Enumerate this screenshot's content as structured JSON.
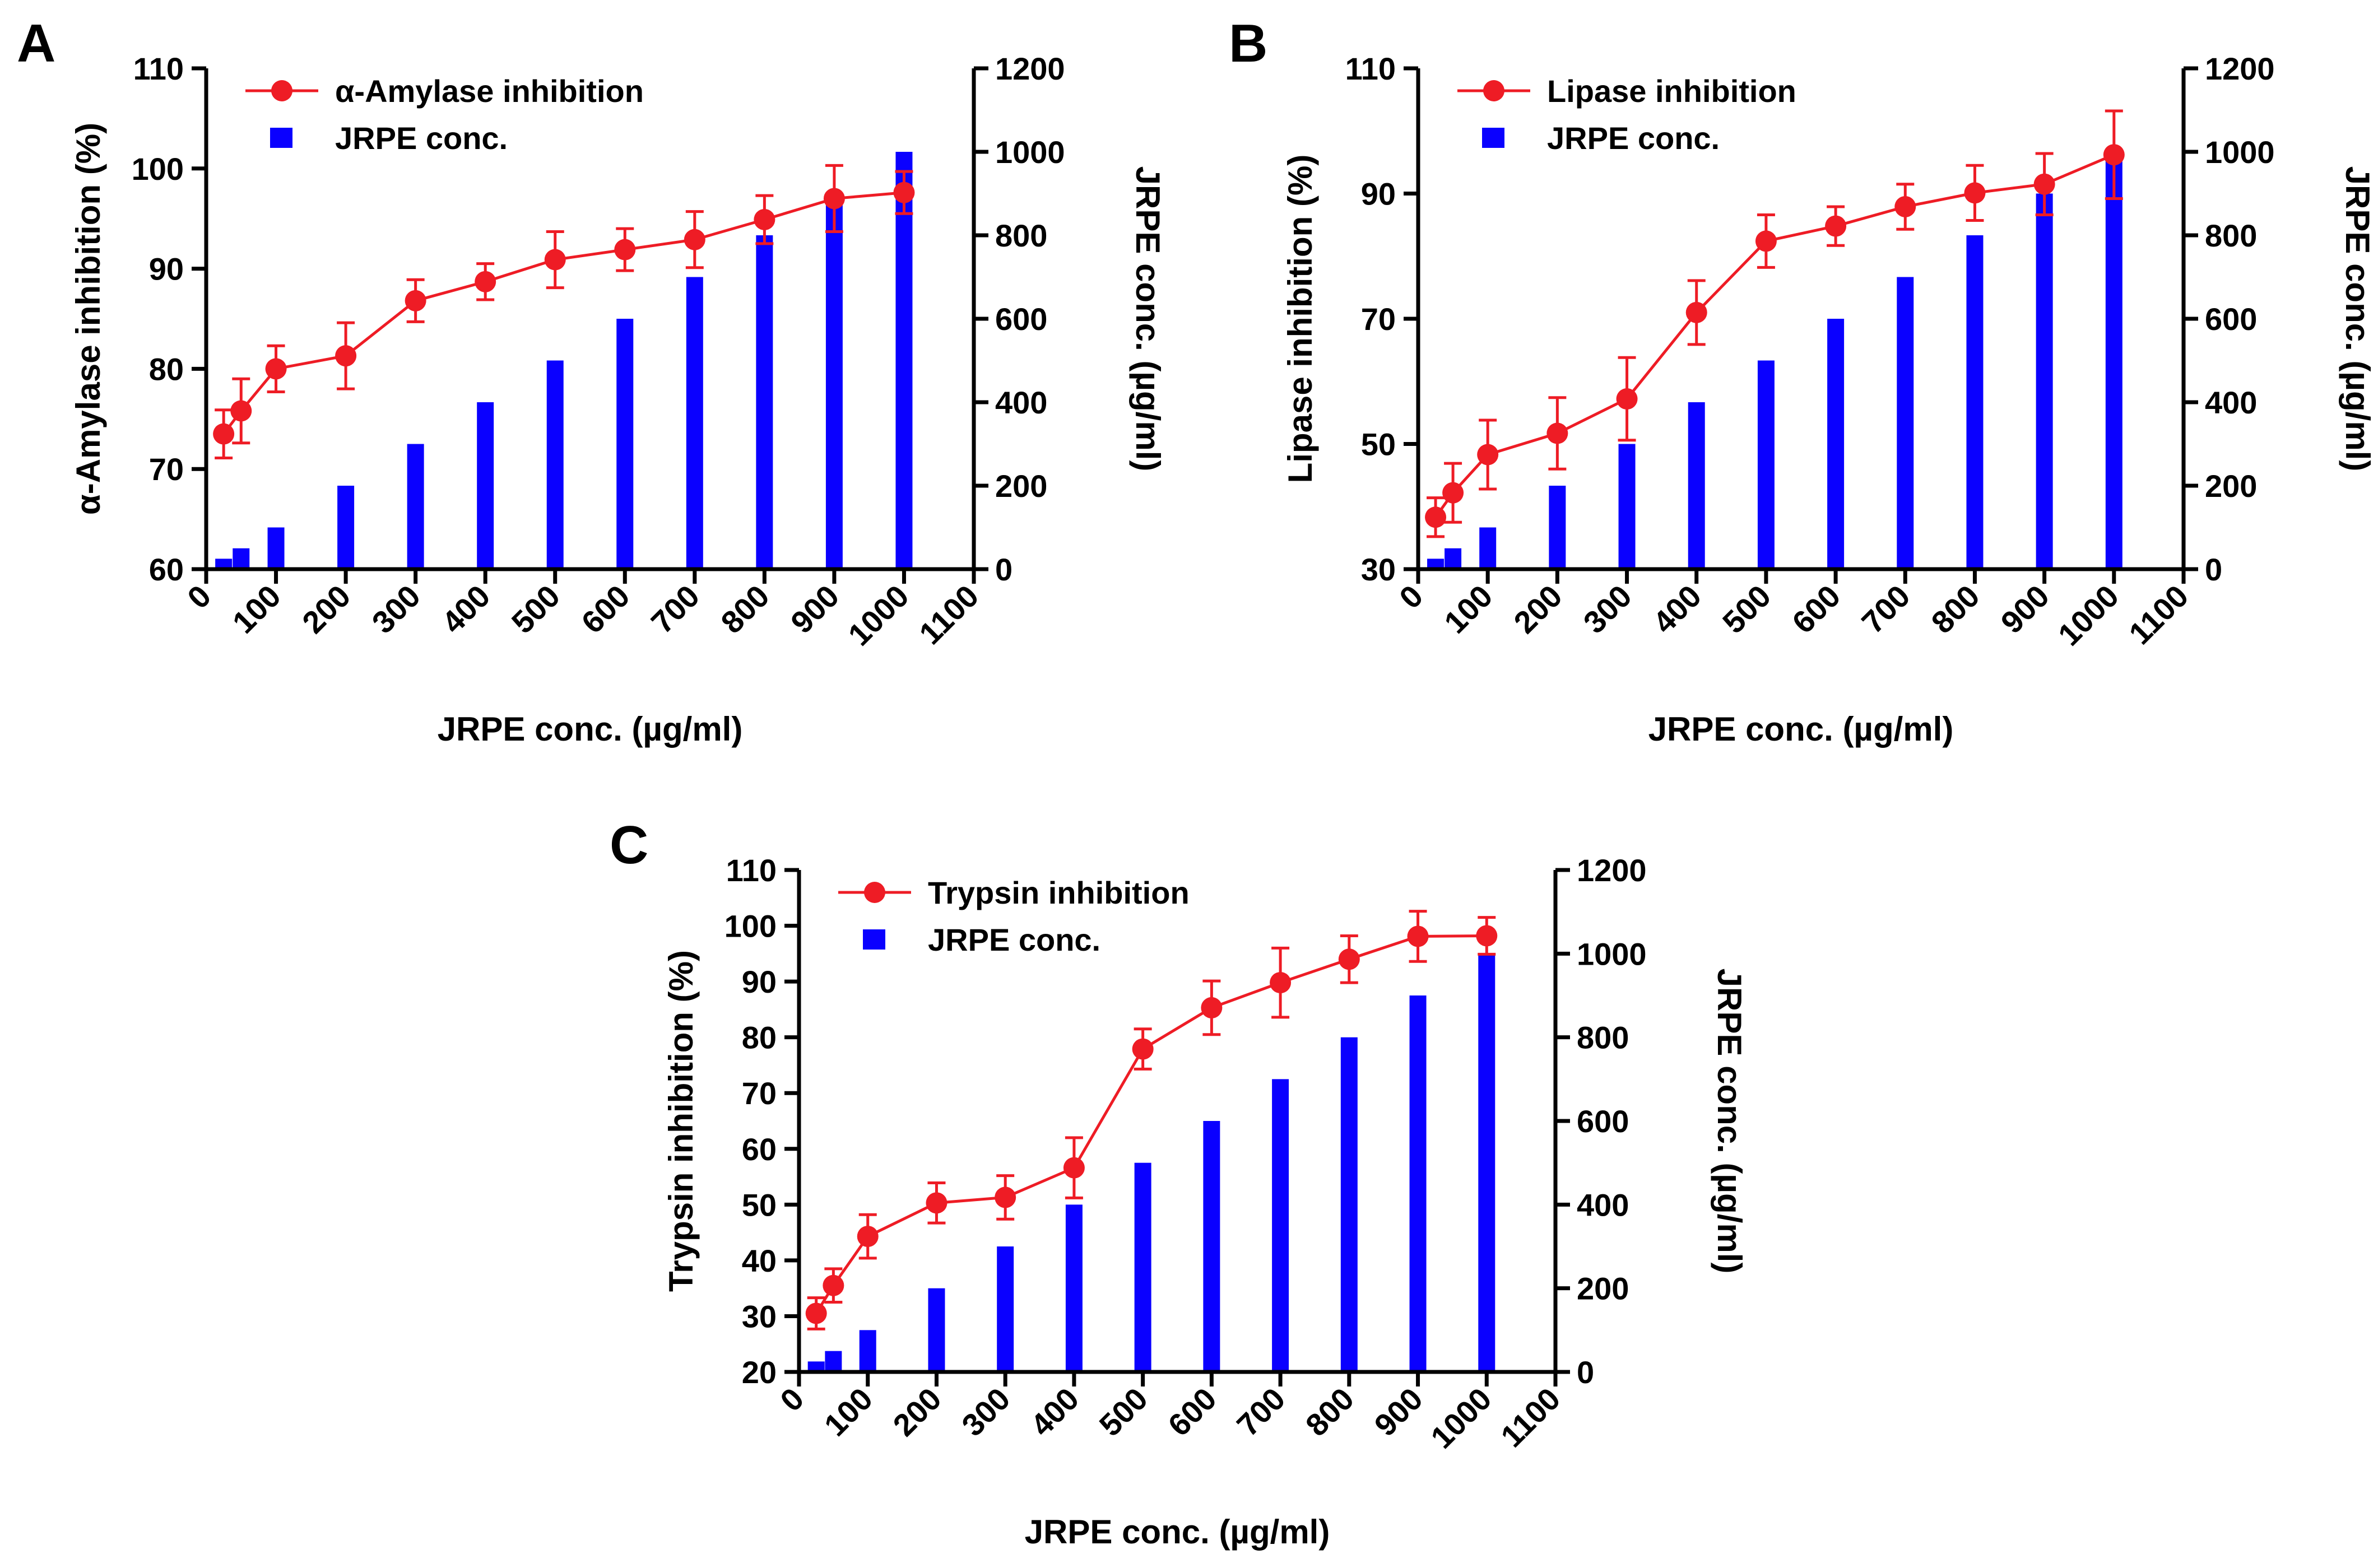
{
  "chart_data": [
    {
      "panel_label": "A",
      "type": "bar+line",
      "xlabel": "JRPE conc. (µg/ml)",
      "ylabel_left": "α-Amylase inhibition (%)",
      "ylabel_right": "JRPE conc. (µg/ml)",
      "xlim": [
        0,
        1100
      ],
      "ylim_left": [
        60,
        110
      ],
      "ylim_right": [
        0,
        1200
      ],
      "x_ticks": [
        0,
        100,
        200,
        300,
        400,
        500,
        600,
        700,
        800,
        900,
        1000,
        1100
      ],
      "y_ticks_left": [
        60,
        70,
        80,
        90,
        100,
        110
      ],
      "y_ticks_right": [
        0,
        200,
        400,
        600,
        800,
        1000,
        1200
      ],
      "legend": {
        "position": "top-left",
        "line_label": "α-Amylase  inhibition",
        "bar_label": "JRPE conc."
      },
      "colors": {
        "line": "#ee1c25",
        "bar": "#0a00ff"
      },
      "x": [
        25,
        50,
        100,
        200,
        300,
        400,
        500,
        600,
        700,
        800,
        900,
        1000
      ],
      "line_values": [
        73.5,
        75.8,
        80.0,
        81.3,
        86.8,
        88.7,
        90.9,
        91.9,
        92.9,
        94.9,
        97.0,
        97.6
      ],
      "line_errors": [
        2.4,
        3.2,
        2.3,
        3.3,
        2.1,
        1.8,
        2.8,
        2.1,
        2.8,
        2.4,
        3.3,
        2.1
      ],
      "bar_values": [
        25,
        50,
        100,
        200,
        300,
        400,
        500,
        600,
        700,
        800,
        900,
        1000
      ]
    },
    {
      "panel_label": "B",
      "type": "bar+line",
      "xlabel": "JRPE conc. (µg/ml)",
      "ylabel_left": "Lipase inhibition (%)",
      "ylabel_right": "JRPE conc. (µg/ml)",
      "xlim": [
        0,
        1100
      ],
      "ylim_left": [
        30,
        110
      ],
      "ylim_right": [
        0,
        1200
      ],
      "x_ticks": [
        0,
        100,
        200,
        300,
        400,
        500,
        600,
        700,
        800,
        900,
        1000,
        1100
      ],
      "y_ticks_left": [
        30,
        50,
        70,
        90,
        110
      ],
      "y_ticks_right": [
        0,
        200,
        400,
        600,
        800,
        1000,
        1200
      ],
      "legend": {
        "position": "top-left",
        "line_label": "Lipase inhibition",
        "bar_label": "JRPE conc."
      },
      "colors": {
        "line": "#ee1c25",
        "bar": "#0a00ff"
      },
      "x": [
        25,
        50,
        100,
        200,
        300,
        400,
        500,
        600,
        700,
        800,
        900,
        1000
      ],
      "line_values": [
        38.3,
        42.2,
        48.3,
        51.7,
        57.2,
        71.0,
        82.4,
        84.8,
        87.9,
        90.1,
        91.5,
        96.2
      ],
      "line_errors": [
        3.1,
        4.7,
        5.5,
        5.7,
        6.6,
        5.1,
        4.2,
        3.1,
        3.6,
        4.4,
        4.9,
        7.0
      ],
      "bar_values": [
        25,
        50,
        100,
        200,
        300,
        400,
        500,
        600,
        700,
        800,
        900,
        1000
      ]
    },
    {
      "panel_label": "C",
      "type": "bar+line",
      "xlabel": "JRPE conc. (µg/ml)",
      "ylabel_left": "Trypsin inhibition (%)",
      "ylabel_right": "JRPE conc. (µg/ml)",
      "xlim": [
        0,
        1100
      ],
      "ylim_left": [
        20,
        110
      ],
      "ylim_right": [
        0,
        1200
      ],
      "x_ticks": [
        0,
        100,
        200,
        300,
        400,
        500,
        600,
        700,
        800,
        900,
        1000,
        1100
      ],
      "y_ticks_left": [
        20,
        30,
        40,
        50,
        60,
        70,
        80,
        90,
        100,
        110
      ],
      "y_ticks_right": [
        0,
        200,
        400,
        600,
        800,
        1000,
        1200
      ],
      "legend": {
        "position": "top-left",
        "line_label": "Trypsin inhibition",
        "bar_label": "JRPE conc."
      },
      "colors": {
        "line": "#ee1c25",
        "bar": "#0a00ff"
      },
      "x": [
        25,
        50,
        100,
        200,
        300,
        400,
        500,
        600,
        700,
        800,
        900,
        1000
      ],
      "line_values": [
        30.5,
        35.5,
        44.3,
        50.3,
        51.3,
        56.6,
        77.9,
        85.3,
        89.8,
        94.0,
        98.1,
        98.2
      ],
      "line_errors": [
        2.8,
        3.0,
        3.9,
        3.6,
        3.9,
        5.4,
        3.6,
        4.8,
        6.2,
        4.2,
        4.5,
        3.3
      ],
      "bar_values": [
        25,
        50,
        100,
        200,
        300,
        400,
        500,
        600,
        700,
        800,
        900,
        1000
      ]
    }
  ]
}
